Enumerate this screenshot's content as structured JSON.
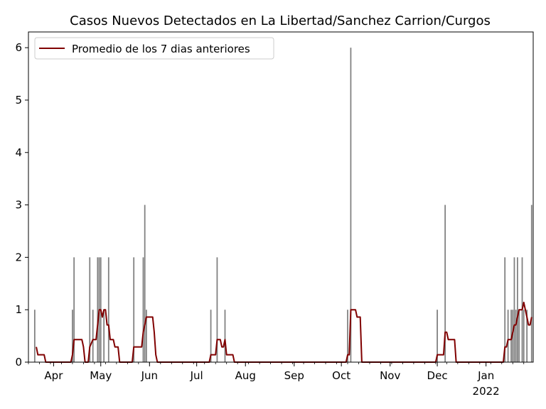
{
  "chart_data": {
    "type": "bar",
    "title": "Casos Nuevos Detectados en La Libertad/Sanchez Carrion/Curgos",
    "xlabel": "",
    "ylabel": "",
    "x_start": "2021-03-16",
    "x_end": "2022-01-31",
    "ylim": [
      0,
      6.3
    ],
    "y_ticks": [
      0,
      1,
      2,
      3,
      4,
      5,
      6
    ],
    "x_ticks": [
      {
        "date": "2021-04-01",
        "label": "Apr"
      },
      {
        "date": "2021-05-01",
        "label": "May"
      },
      {
        "date": "2021-06-01",
        "label": "Jun"
      },
      {
        "date": "2021-07-01",
        "label": "Jul"
      },
      {
        "date": "2021-08-01",
        "label": "Aug"
      },
      {
        "date": "2021-09-01",
        "label": "Sep"
      },
      {
        "date": "2021-10-01",
        "label": "Oct"
      },
      {
        "date": "2021-11-01",
        "label": "Nov"
      },
      {
        "date": "2021-12-01",
        "label": "Dec"
      },
      {
        "date": "2022-01-01",
        "label": "Jan",
        "sublabel": "2022"
      }
    ],
    "legend": {
      "location": "upper-left",
      "entries": [
        "Promedio de los 7 dias anteriores"
      ]
    },
    "grid": false,
    "colors": {
      "bars": "#808080",
      "line": "#800000"
    },
    "series": [
      {
        "type": "bar",
        "points": [
          [
            "2021-03-20",
            1
          ],
          [
            "2021-04-13",
            1
          ],
          [
            "2021-04-14",
            2
          ],
          [
            "2021-04-24",
            2
          ],
          [
            "2021-04-26",
            1
          ],
          [
            "2021-04-29",
            2
          ],
          [
            "2021-04-30",
            2
          ],
          [
            "2021-05-01",
            2
          ],
          [
            "2021-05-03",
            1
          ],
          [
            "2021-05-06",
            2
          ],
          [
            "2021-05-22",
            2
          ],
          [
            "2021-05-28",
            2
          ],
          [
            "2021-05-29",
            3
          ],
          [
            "2021-05-30",
            1
          ],
          [
            "2021-07-10",
            1
          ],
          [
            "2021-07-14",
            2
          ],
          [
            "2021-07-19",
            1
          ],
          [
            "2021-10-05",
            1
          ],
          [
            "2021-10-07",
            6
          ],
          [
            "2021-12-01",
            1
          ],
          [
            "2021-12-06",
            3
          ],
          [
            "2022-01-13",
            2
          ],
          [
            "2022-01-15",
            1
          ],
          [
            "2022-01-17",
            1
          ],
          [
            "2022-01-18",
            1
          ],
          [
            "2022-01-19",
            2
          ],
          [
            "2022-01-20",
            1
          ],
          [
            "2022-01-21",
            2
          ],
          [
            "2022-01-22",
            1
          ],
          [
            "2022-01-24",
            2
          ],
          [
            "2022-01-25",
            1
          ],
          [
            "2022-01-27",
            1
          ],
          [
            "2022-01-30",
            3
          ]
        ]
      },
      {
        "type": "line",
        "name": "Promedio de los 7 dias anteriores",
        "points": [
          [
            "2021-03-21",
            0.29
          ],
          [
            "2021-03-22",
            0.14
          ],
          [
            "2021-03-26",
            0.14
          ],
          [
            "2021-03-27",
            0
          ],
          [
            "2021-04-12",
            0
          ],
          [
            "2021-04-13",
            0.14
          ],
          [
            "2021-04-14",
            0.43
          ],
          [
            "2021-04-19",
            0.43
          ],
          [
            "2021-04-20",
            0.29
          ],
          [
            "2021-04-21",
            0
          ],
          [
            "2021-04-23",
            0
          ],
          [
            "2021-04-24",
            0.29
          ],
          [
            "2021-04-26",
            0.43
          ],
          [
            "2021-04-28",
            0.43
          ],
          [
            "2021-04-29",
            0.71
          ],
          [
            "2021-04-30",
            1
          ],
          [
            "2021-05-01",
            1
          ],
          [
            "2021-05-02",
            0.86
          ],
          [
            "2021-05-03",
            1
          ],
          [
            "2021-05-04",
            1
          ],
          [
            "2021-05-05",
            0.71
          ],
          [
            "2021-05-06",
            0.71
          ],
          [
            "2021-05-07",
            0.43
          ],
          [
            "2021-05-09",
            0.43
          ],
          [
            "2021-05-10",
            0.29
          ],
          [
            "2021-05-12",
            0.29
          ],
          [
            "2021-05-13",
            0
          ],
          [
            "2021-05-21",
            0
          ],
          [
            "2021-05-22",
            0.29
          ],
          [
            "2021-05-27",
            0.29
          ],
          [
            "2021-05-28",
            0.57
          ],
          [
            "2021-05-29",
            0.71
          ],
          [
            "2021-05-30",
            0.86
          ],
          [
            "2021-06-03",
            0.86
          ],
          [
            "2021-06-04",
            0.57
          ],
          [
            "2021-06-05",
            0.14
          ],
          [
            "2021-06-06",
            0
          ],
          [
            "2021-07-09",
            0
          ],
          [
            "2021-07-10",
            0.14
          ],
          [
            "2021-07-13",
            0.14
          ],
          [
            "2021-07-14",
            0.43
          ],
          [
            "2021-07-16",
            0.43
          ],
          [
            "2021-07-17",
            0.29
          ],
          [
            "2021-07-18",
            0.29
          ],
          [
            "2021-07-19",
            0.43
          ],
          [
            "2021-07-20",
            0.14
          ],
          [
            "2021-07-24",
            0.14
          ],
          [
            "2021-07-25",
            0
          ],
          [
            "2021-10-04",
            0
          ],
          [
            "2021-10-05",
            0.14
          ],
          [
            "2021-10-06",
            0.14
          ],
          [
            "2021-10-07",
            1
          ],
          [
            "2021-10-10",
            1
          ],
          [
            "2021-10-11",
            0.86
          ],
          [
            "2021-10-13",
            0.86
          ],
          [
            "2021-10-14",
            0
          ],
          [
            "2021-11-30",
            0
          ],
          [
            "2021-12-01",
            0.14
          ],
          [
            "2021-12-05",
            0.14
          ],
          [
            "2021-12-06",
            0.57
          ],
          [
            "2021-12-07",
            0.57
          ],
          [
            "2021-12-08",
            0.43
          ],
          [
            "2021-12-12",
            0.43
          ],
          [
            "2021-12-13",
            0
          ],
          [
            "2022-01-12",
            0
          ],
          [
            "2022-01-13",
            0.29
          ],
          [
            "2022-01-14",
            0.29
          ],
          [
            "2022-01-15",
            0.43
          ],
          [
            "2022-01-17",
            0.43
          ],
          [
            "2022-01-18",
            0.57
          ],
          [
            "2022-01-19",
            0.71
          ],
          [
            "2022-01-20",
            0.71
          ],
          [
            "2022-01-21",
            0.86
          ],
          [
            "2022-01-22",
            1
          ],
          [
            "2022-01-24",
            1
          ],
          [
            "2022-01-25",
            1.14
          ],
          [
            "2022-01-26",
            1
          ],
          [
            "2022-01-27",
            0.86
          ],
          [
            "2022-01-28",
            0.71
          ],
          [
            "2022-01-29",
            0.71
          ],
          [
            "2022-01-30",
            0.86
          ]
        ]
      }
    ]
  }
}
